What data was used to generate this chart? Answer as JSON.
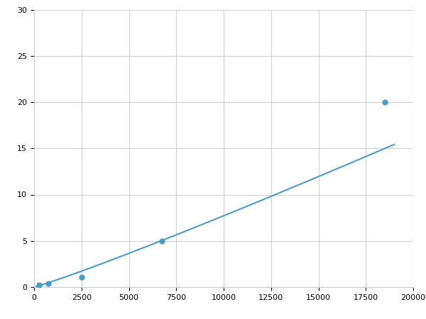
{
  "x_points": [
    250,
    750,
    2500,
    6750,
    18500
  ],
  "y_points": [
    0.2,
    0.4,
    1.1,
    5.0,
    20.0
  ],
  "line_color": "#4a9dc9",
  "marker_color": "#4a9dc9",
  "marker_size": 5,
  "line_width": 1.5,
  "xlim": [
    0,
    20000
  ],
  "ylim": [
    0,
    30
  ],
  "xticks": [
    0,
    2500,
    5000,
    7500,
    10000,
    12500,
    15000,
    17500,
    20000
  ],
  "yticks": [
    0,
    5,
    10,
    15,
    20,
    25,
    30
  ],
  "xtick_labels": [
    "0",
    "2500",
    "5000",
    "7500",
    "10000",
    "12500",
    "15000",
    "17500",
    "20000"
  ],
  "ytick_labels": [
    "0",
    "5",
    "10",
    "15",
    "20",
    "25",
    "30"
  ],
  "grid_color": "#d0d0d0",
  "background_color": "#ffffff",
  "spine_color": "#cccccc",
  "x_curve_start": 100,
  "x_curve_end": 19000
}
